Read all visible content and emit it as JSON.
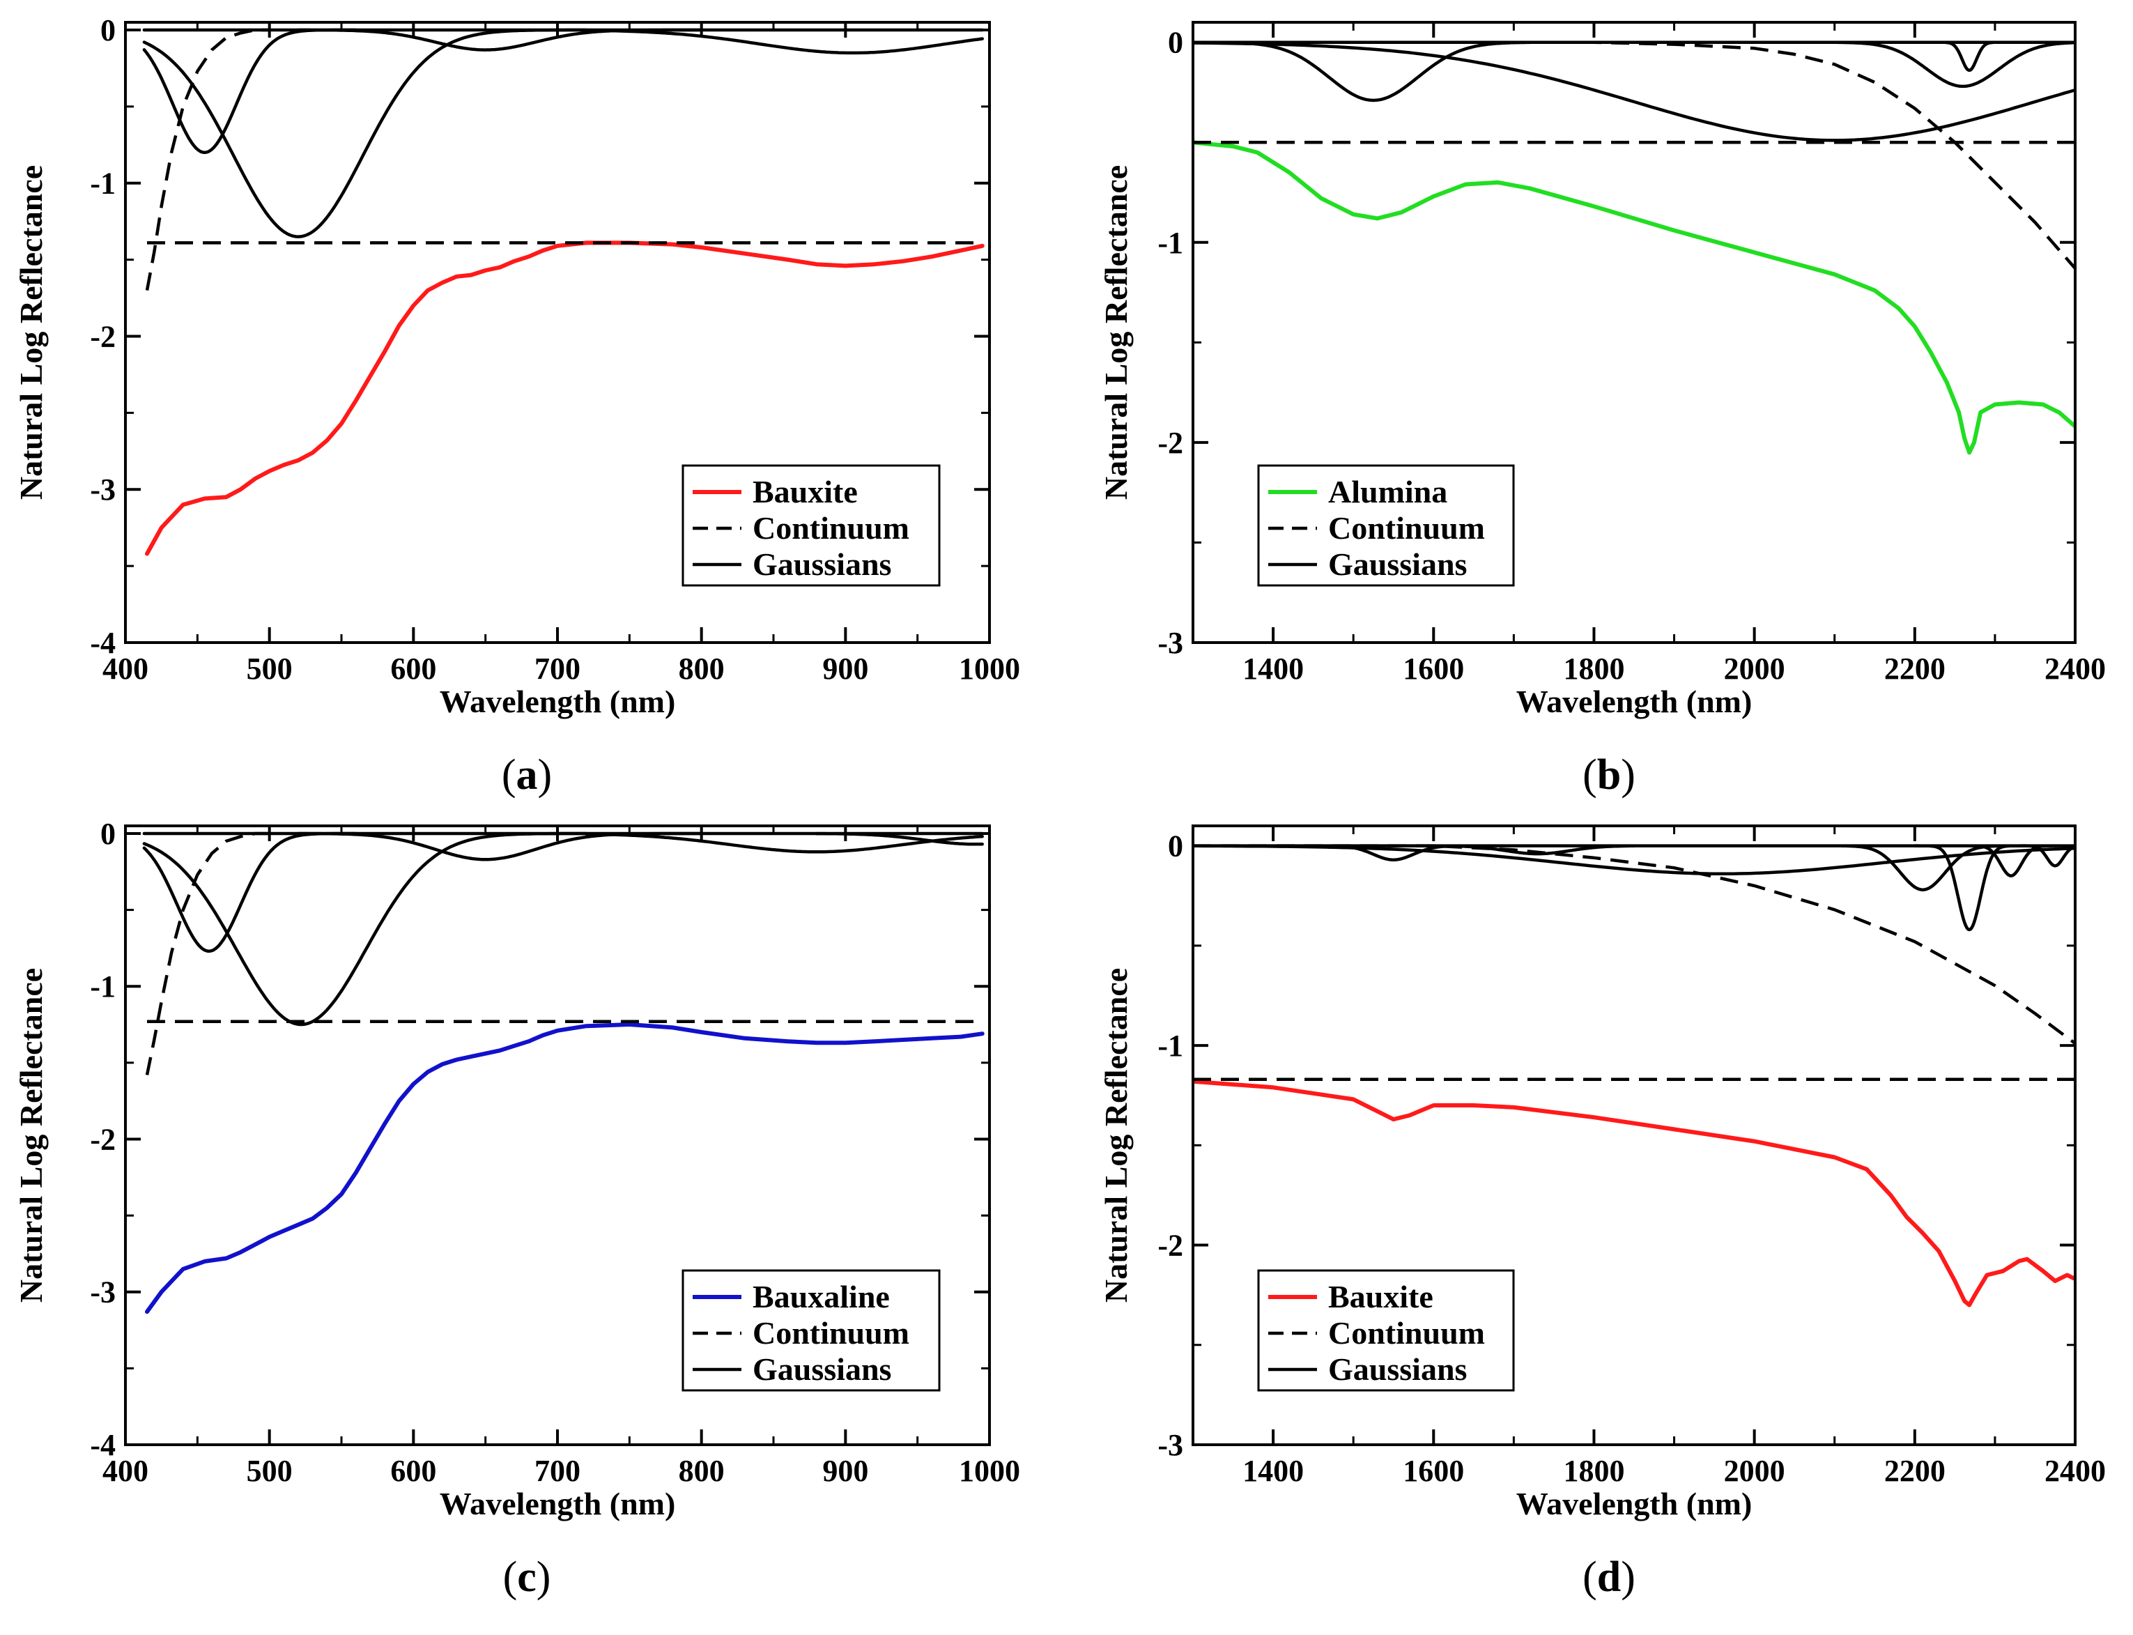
{
  "figure": {
    "colors": {
      "black": "#000000",
      "red": "#ff1a1a",
      "green": "#22dd22",
      "blue": "#1111cc"
    }
  },
  "chart_data": [
    {
      "id": "a",
      "caption_letter": "a",
      "type": "line",
      "xlabel": "Wavelength (nm)",
      "ylabel": "Natural Log Reflectance",
      "xlim": [
        400,
        1000
      ],
      "ylim": [
        -4,
        0.05
      ],
      "xticks": [
        400,
        500,
        600,
        700,
        800,
        900,
        1000
      ],
      "yticks": [
        0,
        -1,
        -2,
        -3,
        -4
      ],
      "legend_position": "bottom-right",
      "series": [
        {
          "name": "Bauxite",
          "role": "spectrum",
          "color": "#ff1a1a",
          "dash": "solid",
          "x": [
            415,
            425,
            440,
            455,
            470,
            480,
            490,
            500,
            510,
            520,
            530,
            540,
            550,
            560,
            570,
            580,
            590,
            600,
            610,
            620,
            630,
            640,
            650,
            660,
            670,
            680,
            690,
            700,
            720,
            750,
            780,
            800,
            830,
            860,
            880,
            900,
            920,
            940,
            960,
            980,
            995
          ],
          "y": [
            -3.42,
            -3.25,
            -3.1,
            -3.06,
            -3.05,
            -3.0,
            -2.93,
            -2.88,
            -2.84,
            -2.81,
            -2.76,
            -2.68,
            -2.57,
            -2.42,
            -2.26,
            -2.1,
            -1.93,
            -1.8,
            -1.7,
            -1.65,
            -1.61,
            -1.6,
            -1.57,
            -1.55,
            -1.51,
            -1.48,
            -1.44,
            -1.41,
            -1.39,
            -1.39,
            -1.4,
            -1.42,
            -1.46,
            -1.5,
            -1.53,
            -1.54,
            -1.53,
            -1.51,
            -1.48,
            -1.44,
            -1.41
          ]
        },
        {
          "name": "Continuum",
          "role": "continuum-flat",
          "color": "#000000",
          "dash": "dashed",
          "x": [
            415,
            995
          ],
          "y": [
            -1.39,
            -1.39
          ]
        },
        {
          "name": "",
          "role": "continuum-curve",
          "color": "#000000",
          "dash": "dashed",
          "x": [
            415,
            420,
            425,
            432,
            440,
            450,
            460,
            470,
            480,
            490,
            500
          ],
          "y": [
            -1.7,
            -1.45,
            -1.15,
            -0.8,
            -0.5,
            -0.27,
            -0.13,
            -0.05,
            -0.02,
            0.0,
            0.0
          ]
        },
        {
          "name": "Gaussians",
          "role": "gaussian",
          "color": "#000000",
          "dash": "solid",
          "gaussian": {
            "center": 455,
            "depth": 0.8,
            "sigma": 22
          },
          "x_range": [
            413,
            560
          ]
        },
        {
          "name": "",
          "role": "gaussian",
          "color": "#000000",
          "dash": "solid",
          "gaussian": {
            "center": 520,
            "depth": 1.35,
            "sigma": 45
          },
          "x_range": [
            413,
            720
          ]
        },
        {
          "name": "",
          "role": "gaussian",
          "color": "#000000",
          "dash": "solid",
          "gaussian": {
            "center": 650,
            "depth": 0.13,
            "sigma": 35
          },
          "x_range": [
            520,
            800
          ]
        },
        {
          "name": "",
          "role": "gaussian",
          "color": "#000000",
          "dash": "solid",
          "gaussian": {
            "center": 905,
            "depth": 0.15,
            "sigma": 65
          },
          "x_range": [
            720,
            995
          ]
        },
        {
          "name": "",
          "role": "baseline",
          "color": "#000000",
          "dash": "solid",
          "x": [
            413,
            995
          ],
          "y": [
            0.0,
            0.0
          ]
        }
      ]
    },
    {
      "id": "b",
      "caption_letter": "b",
      "type": "line",
      "xlabel": "Wavelength (nm)",
      "ylabel": "Natural Log Reflectance",
      "xlim": [
        1300,
        2400
      ],
      "ylim": [
        -3,
        0.1
      ],
      "xticks": [
        1400,
        1600,
        1800,
        2000,
        2200,
        2400
      ],
      "yticks": [
        0,
        -1,
        -2,
        -3
      ],
      "legend_position": "bottom-left",
      "series": [
        {
          "name": "Alumina",
          "role": "spectrum",
          "color": "#22dd22",
          "dash": "solid",
          "x": [
            1300,
            1350,
            1380,
            1420,
            1460,
            1500,
            1530,
            1560,
            1600,
            1640,
            1680,
            1720,
            1800,
            1900,
            2000,
            2100,
            2150,
            2180,
            2200,
            2220,
            2240,
            2255,
            2262,
            2268,
            2274,
            2282,
            2300,
            2330,
            2360,
            2380,
            2400
          ],
          "y": [
            -0.5,
            -0.52,
            -0.55,
            -0.65,
            -0.78,
            -0.86,
            -0.88,
            -0.85,
            -0.77,
            -0.71,
            -0.7,
            -0.73,
            -0.82,
            -0.94,
            -1.05,
            -1.16,
            -1.24,
            -1.33,
            -1.42,
            -1.55,
            -1.7,
            -1.85,
            -1.98,
            -2.05,
            -2.0,
            -1.85,
            -1.81,
            -1.8,
            -1.81,
            -1.85,
            -1.92
          ]
        },
        {
          "name": "Continuum",
          "role": "continuum-flat",
          "color": "#000000",
          "dash": "dashed",
          "x": [
            1300,
            2400
          ],
          "y": [
            -0.5,
            -0.5
          ]
        },
        {
          "name": "",
          "role": "continuum-curve",
          "color": "#000000",
          "dash": "dashed",
          "x": [
            1300,
            1600,
            1800,
            1900,
            2000,
            2050,
            2100,
            2150,
            2200,
            2250,
            2300,
            2350,
            2400
          ],
          "y": [
            0.0,
            0.0,
            0.0,
            -0.01,
            -0.03,
            -0.06,
            -0.11,
            -0.2,
            -0.33,
            -0.5,
            -0.7,
            -0.9,
            -1.13
          ]
        },
        {
          "name": "Gaussians",
          "role": "gaussian",
          "color": "#000000",
          "dash": "solid",
          "gaussian": {
            "center": 1525,
            "depth": 0.29,
            "sigma": 55
          },
          "x_range": [
            1300,
            1800
          ]
        },
        {
          "name": "",
          "role": "gaussian",
          "color": "#000000",
          "dash": "solid",
          "gaussian": {
            "center": 2100,
            "depth": 0.49,
            "sigma": 250
          },
          "x_range": [
            1300,
            2400
          ]
        },
        {
          "name": "",
          "role": "gaussian",
          "color": "#000000",
          "dash": "solid",
          "gaussian": {
            "center": 2260,
            "depth": 0.22,
            "sigma": 45
          },
          "x_range": [
            2050,
            2400
          ]
        },
        {
          "name": "",
          "role": "gaussian",
          "color": "#000000",
          "dash": "solid",
          "gaussian": {
            "center": 2268,
            "depth": 0.14,
            "sigma": 9
          },
          "x_range": [
            2200,
            2340
          ]
        },
        {
          "name": "",
          "role": "baseline",
          "color": "#000000",
          "dash": "solid",
          "x": [
            1300,
            2400
          ],
          "y": [
            0.0,
            0.0
          ]
        }
      ]
    },
    {
      "id": "c",
      "caption_letter": "c",
      "type": "line",
      "xlabel": "Wavelength (nm)",
      "ylabel": "Natural Log Reflectance",
      "xlim": [
        400,
        1000
      ],
      "ylim": [
        -4,
        0.05
      ],
      "xticks": [
        400,
        500,
        600,
        700,
        800,
        900,
        1000
      ],
      "yticks": [
        0,
        -1,
        -2,
        -3,
        -4
      ],
      "legend_position": "bottom-right",
      "series": [
        {
          "name": "Bauxaline",
          "role": "spectrum",
          "color": "#1111cc",
          "dash": "solid",
          "x": [
            415,
            425,
            440,
            455,
            470,
            480,
            490,
            500,
            510,
            520,
            530,
            540,
            550,
            560,
            570,
            580,
            590,
            600,
            610,
            620,
            630,
            640,
            650,
            660,
            670,
            680,
            690,
            700,
            720,
            750,
            780,
            800,
            830,
            860,
            880,
            900,
            920,
            940,
            960,
            980,
            995
          ],
          "y": [
            -3.13,
            -3.0,
            -2.85,
            -2.8,
            -2.78,
            -2.74,
            -2.69,
            -2.64,
            -2.6,
            -2.56,
            -2.52,
            -2.45,
            -2.36,
            -2.22,
            -2.06,
            -1.9,
            -1.75,
            -1.64,
            -1.56,
            -1.51,
            -1.48,
            -1.46,
            -1.44,
            -1.42,
            -1.39,
            -1.36,
            -1.32,
            -1.29,
            -1.26,
            -1.25,
            -1.27,
            -1.3,
            -1.34,
            -1.36,
            -1.37,
            -1.37,
            -1.36,
            -1.35,
            -1.34,
            -1.33,
            -1.31
          ]
        },
        {
          "name": "Continuum",
          "role": "continuum-flat",
          "color": "#000000",
          "dash": "dashed",
          "x": [
            415,
            995
          ],
          "y": [
            -1.23,
            -1.23
          ]
        },
        {
          "name": "",
          "role": "continuum-curve",
          "color": "#000000",
          "dash": "dashed",
          "x": [
            415,
            420,
            425,
            432,
            440,
            450,
            460,
            470,
            480,
            490,
            500
          ],
          "y": [
            -1.58,
            -1.35,
            -1.1,
            -0.78,
            -0.5,
            -0.27,
            -0.13,
            -0.05,
            -0.02,
            0.0,
            0.0
          ]
        },
        {
          "name": "Gaussians",
          "role": "gaussian",
          "color": "#000000",
          "dash": "solid",
          "gaussian": {
            "center": 458,
            "depth": 0.77,
            "sigma": 22
          },
          "x_range": [
            413,
            560
          ]
        },
        {
          "name": "",
          "role": "gaussian",
          "color": "#000000",
          "dash": "solid",
          "gaussian": {
            "center": 522,
            "depth": 1.25,
            "sigma": 45
          },
          "x_range": [
            413,
            720
          ]
        },
        {
          "name": "",
          "role": "gaussian",
          "color": "#000000",
          "dash": "solid",
          "gaussian": {
            "center": 650,
            "depth": 0.17,
            "sigma": 35
          },
          "x_range": [
            520,
            800
          ]
        },
        {
          "name": "",
          "role": "gaussian",
          "color": "#000000",
          "dash": "solid",
          "gaussian": {
            "center": 880,
            "depth": 0.12,
            "sigma": 60
          },
          "x_range": [
            720,
            995
          ]
        },
        {
          "name": "",
          "role": "gaussian",
          "color": "#000000",
          "dash": "solid",
          "gaussian": {
            "center": 990,
            "depth": 0.07,
            "sigma": 35
          },
          "x_range": [
            880,
            995
          ]
        },
        {
          "name": "",
          "role": "baseline",
          "color": "#000000",
          "dash": "solid",
          "x": [
            413,
            995
          ],
          "y": [
            0.0,
            0.0
          ]
        }
      ]
    },
    {
      "id": "d",
      "caption_letter": "d",
      "type": "line",
      "xlabel": "Wavelength (nm)",
      "ylabel": "Natural Log Reflectance",
      "xlim": [
        1300,
        2400
      ],
      "ylim": [
        -3,
        0.1
      ],
      "xticks": [
        1400,
        1600,
        1800,
        2000,
        2200,
        2400
      ],
      "yticks": [
        0,
        -1,
        -2,
        -3
      ],
      "legend_position": "bottom-left",
      "series": [
        {
          "name": "Bauxite",
          "role": "spectrum",
          "color": "#ff1a1a",
          "dash": "solid",
          "x": [
            1300,
            1400,
            1500,
            1530,
            1550,
            1570,
            1600,
            1650,
            1700,
            1800,
            1900,
            2000,
            2100,
            2140,
            2170,
            2190,
            2210,
            2230,
            2250,
            2262,
            2268,
            2275,
            2290,
            2310,
            2330,
            2340,
            2360,
            2375,
            2390,
            2400
          ],
          "y": [
            -1.18,
            -1.21,
            -1.27,
            -1.33,
            -1.37,
            -1.35,
            -1.3,
            -1.3,
            -1.31,
            -1.36,
            -1.42,
            -1.48,
            -1.56,
            -1.62,
            -1.75,
            -1.86,
            -1.94,
            -2.03,
            -2.18,
            -2.28,
            -2.3,
            -2.25,
            -2.15,
            -2.13,
            -2.08,
            -2.07,
            -2.13,
            -2.18,
            -2.15,
            -2.17
          ]
        },
        {
          "name": "Continuum",
          "role": "continuum-flat",
          "color": "#000000",
          "dash": "dashed",
          "x": [
            1300,
            2400
          ],
          "y": [
            -1.17,
            -1.17
          ]
        },
        {
          "name": "",
          "role": "continuum-curve",
          "color": "#000000",
          "dash": "dashed",
          "x": [
            1300,
            1600,
            1700,
            1800,
            1900,
            2000,
            2100,
            2200,
            2300,
            2350,
            2400
          ],
          "y": [
            0.0,
            0.0,
            -0.02,
            -0.06,
            -0.11,
            -0.2,
            -0.32,
            -0.48,
            -0.7,
            -0.84,
            -0.99
          ]
        },
        {
          "name": "Gaussians",
          "role": "gaussian",
          "color": "#000000",
          "dash": "solid",
          "gaussian": {
            "center": 1550,
            "depth": 0.07,
            "sigma": 25
          },
          "x_range": [
            1450,
            1650
          ]
        },
        {
          "name": "",
          "role": "gaussian",
          "color": "#000000",
          "dash": "solid",
          "gaussian": {
            "center": 1730,
            "depth": 0.04,
            "sigma": 40
          },
          "x_range": [
            1600,
            1850
          ]
        },
        {
          "name": "",
          "role": "gaussian",
          "color": "#000000",
          "dash": "solid",
          "gaussian": {
            "center": 1960,
            "depth": 0.14,
            "sigma": 200
          },
          "x_range": [
            1300,
            2400
          ]
        },
        {
          "name": "",
          "role": "gaussian",
          "color": "#000000",
          "dash": "solid",
          "gaussian": {
            "center": 2210,
            "depth": 0.22,
            "sigma": 28
          },
          "x_range": [
            2110,
            2310
          ]
        },
        {
          "name": "",
          "role": "gaussian",
          "color": "#000000",
          "dash": "solid",
          "gaussian": {
            "center": 2268,
            "depth": 0.42,
            "sigma": 14
          },
          "x_range": [
            2200,
            2340
          ]
        },
        {
          "name": "",
          "role": "gaussian",
          "color": "#000000",
          "dash": "solid",
          "gaussian": {
            "center": 2320,
            "depth": 0.15,
            "sigma": 13
          },
          "x_range": [
            2270,
            2370
          ]
        },
        {
          "name": "",
          "role": "gaussian",
          "color": "#000000",
          "dash": "solid",
          "gaussian": {
            "center": 2375,
            "depth": 0.1,
            "sigma": 10
          },
          "x_range": [
            2340,
            2400
          ]
        },
        {
          "name": "",
          "role": "baseline",
          "color": "#000000",
          "dash": "solid",
          "x": [
            1300,
            2400
          ],
          "y": [
            0.0,
            0.0
          ]
        }
      ]
    }
  ]
}
